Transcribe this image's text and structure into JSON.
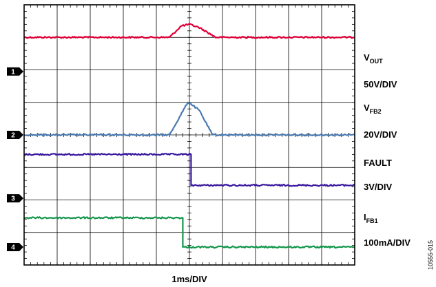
{
  "chart_data": {
    "type": "line",
    "title": "",
    "xlabel": "1ms/DIV",
    "figure_id": "10555-015",
    "grid": true,
    "x_divisions": 10,
    "y_divisions": 8,
    "xlim": [
      0,
      10
    ],
    "ylim": [
      0,
      8
    ],
    "series": [
      {
        "key": "vout",
        "name": "VOUT",
        "name_main": "V",
        "name_sub": "OUT",
        "scale": "50V/DIV",
        "color": "#e0003a",
        "marker": "1",
        "x": [
          0,
          4.4,
          4.75,
          5.0,
          5.3,
          5.8,
          10
        ],
        "y": [
          7.0,
          7.0,
          7.35,
          7.4,
          7.3,
          7.0,
          7.0
        ]
      },
      {
        "key": "vfb2",
        "name": "VFB2",
        "name_main": "V",
        "name_sub": "FB2",
        "scale": "20V/DIV",
        "color": "#4a7ab0",
        "marker": "2",
        "x": [
          0,
          4.4,
          4.95,
          5.05,
          5.3,
          5.7,
          10
        ],
        "y": [
          4.0,
          4.0,
          5.0,
          4.95,
          4.75,
          4.0,
          4.0
        ]
      },
      {
        "key": "fault",
        "name": "FAULT",
        "name_main": "FAULT",
        "name_sub": "",
        "scale": "3V/DIV",
        "color": "#3a1aa0",
        "marker": "3",
        "x": [
          0,
          5.05,
          5.05,
          10
        ],
        "y": [
          3.4,
          3.4,
          2.45,
          2.45
        ]
      },
      {
        "key": "ifb1",
        "name": "IFB1",
        "name_main": "I",
        "name_sub": "FB1",
        "scale": "100mA/DIV",
        "color": "#12964a",
        "marker": "4",
        "x": [
          0,
          4.8,
          4.8,
          10
        ],
        "y": [
          1.45,
          1.45,
          0.55,
          0.55
        ]
      }
    ],
    "ground_markers": [
      {
        "label": "1",
        "y": 5.95
      },
      {
        "label": "2",
        "y": 4.0
      },
      {
        "label": "3",
        "y": 2.05
      },
      {
        "label": "4",
        "y": 0.55
      }
    ]
  }
}
